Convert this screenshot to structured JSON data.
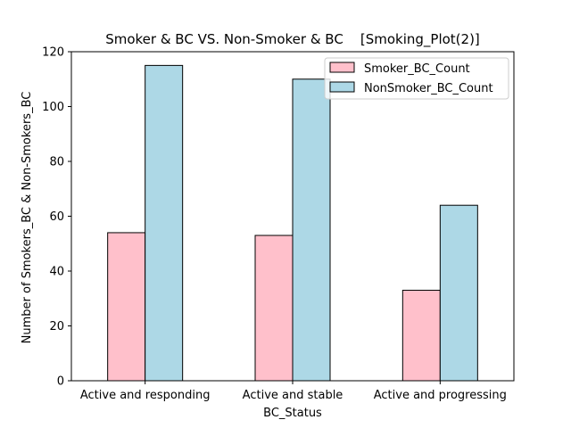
{
  "chart_data": {
    "type": "bar",
    "title": "Smoker & BC VS. Non-Smoker & BC    [Smoking_Plot(2)]",
    "xlabel": "BC_Status",
    "ylabel": "Number of Smokers_BC & Non-Smokers_BC",
    "categories": [
      "Active and responding",
      "Active and stable",
      "Active and progressing"
    ],
    "series": [
      {
        "name": "Smoker_BC_Count",
        "values": [
          54,
          53,
          33
        ],
        "color": "#ffc0cb"
      },
      {
        "name": "NonSmoker_BC_Count",
        "values": [
          115,
          110,
          64
        ],
        "color": "#add8e6"
      }
    ],
    "ylim": [
      0,
      120
    ],
    "yticks": [
      0,
      20,
      40,
      60,
      80,
      100,
      120
    ],
    "grid": false,
    "legend_position": "top-right",
    "edge_color": "#000000"
  }
}
